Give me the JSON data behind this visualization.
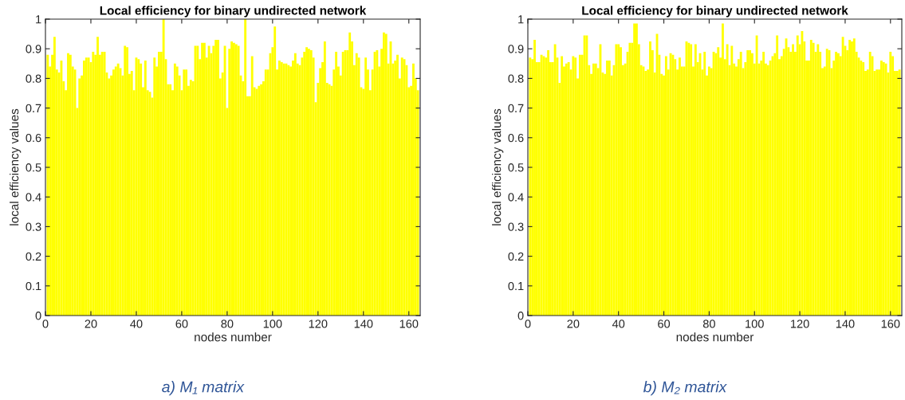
{
  "chart_data": [
    {
      "type": "bar",
      "title": "Local efficiency for binary undirected network",
      "xlabel": "nodes number",
      "ylabel": "local efficiency values",
      "annotations": [
        "a) M₁ matrix"
      ],
      "color": "#ffff00",
      "x": [
        1,
        2,
        3,
        4,
        5,
        6,
        7,
        8,
        9,
        10,
        11,
        12,
        13,
        14,
        15,
        16,
        17,
        18,
        19,
        20,
        21,
        22,
        23,
        24,
        25,
        26,
        27,
        28,
        29,
        30,
        31,
        32,
        33,
        34,
        35,
        36,
        37,
        38,
        39,
        40,
        41,
        42,
        43,
        44,
        45,
        46,
        47,
        48,
        49,
        50,
        51,
        52,
        53,
        54,
        55,
        56,
        57,
        58,
        59,
        60,
        61,
        62,
        63,
        64,
        65,
        66,
        67,
        68,
        69,
        70,
        71,
        72,
        73,
        74,
        75,
        76,
        77,
        78,
        79,
        80,
        81,
        82,
        83,
        84,
        85,
        86,
        87,
        88,
        89,
        90,
        91,
        92,
        93,
        94,
        95,
        96,
        97,
        98,
        99,
        100,
        101,
        102,
        103,
        104,
        105,
        106,
        107,
        108,
        109,
        110,
        111,
        112,
        113,
        114,
        115,
        116,
        117,
        118,
        119,
        120,
        121,
        122,
        123,
        124,
        125,
        126,
        127,
        128,
        129,
        130,
        131,
        132,
        133,
        134,
        135,
        136,
        137,
        138,
        139,
        140,
        141,
        142,
        143,
        144,
        145,
        146,
        147,
        148,
        149,
        150,
        151,
        152,
        153,
        154,
        155,
        156,
        157,
        158,
        159,
        160,
        161,
        162,
        163,
        164
      ],
      "values": [
        0.88,
        0.84,
        0.88,
        0.94,
        0.83,
        0.82,
        0.86,
        0.79,
        0.76,
        0.885,
        0.88,
        0.84,
        0.83,
        0.7,
        0.8,
        0.81,
        0.86,
        0.87,
        0.87,
        0.855,
        0.89,
        0.88,
        0.94,
        0.88,
        0.89,
        0.89,
        0.82,
        0.8,
        0.81,
        0.83,
        0.84,
        0.85,
        0.835,
        0.81,
        0.91,
        0.905,
        0.815,
        0.825,
        0.76,
        0.87,
        0.865,
        0.85,
        0.77,
        0.86,
        0.76,
        0.755,
        0.735,
        0.87,
        0.84,
        0.89,
        0.89,
        1.0,
        0.865,
        0.78,
        0.78,
        0.76,
        0.85,
        0.84,
        0.81,
        0.76,
        0.83,
        0.83,
        0.775,
        0.795,
        0.79,
        0.91,
        0.91,
        0.865,
        0.92,
        0.92,
        0.87,
        0.91,
        0.885,
        0.91,
        0.93,
        0.93,
        0.8,
        0.82,
        0.91,
        0.7,
        0.9,
        0.925,
        0.92,
        0.915,
        0.91,
        0.81,
        0.79,
        1.0,
        0.74,
        0.74,
        0.875,
        0.77,
        0.765,
        0.775,
        0.78,
        0.79,
        0.83,
        0.83,
        0.885,
        0.905,
        0.975,
        0.83,
        0.86,
        0.855,
        0.85,
        0.85,
        0.845,
        0.84,
        0.86,
        0.885,
        0.85,
        0.845,
        0.87,
        0.89,
        0.905,
        0.9,
        0.895,
        0.87,
        0.72,
        0.785,
        0.835,
        0.855,
        0.925,
        0.785,
        0.78,
        0.775,
        0.83,
        0.89,
        0.84,
        0.81,
        0.89,
        0.895,
        0.895,
        0.955,
        0.925,
        0.845,
        0.885,
        0.87,
        0.77,
        0.765,
        0.87,
        0.83,
        0.76,
        0.83,
        0.89,
        0.895,
        0.84,
        0.9,
        0.955,
        0.95,
        0.85,
        0.925,
        0.85,
        0.86,
        0.88,
        0.8,
        0.87,
        0.865,
        0.845,
        0.77,
        0.775,
        0.85,
        0.8,
        0.76
      ],
      "xlim": [
        0,
        165
      ],
      "xticks": [
        0,
        20,
        40,
        60,
        80,
        100,
        120,
        140,
        160
      ],
      "ylim": [
        0,
        1
      ],
      "yticks": [
        0,
        0.1,
        0.2,
        0.3,
        0.4,
        0.5,
        0.6,
        0.7,
        0.8,
        0.9,
        1
      ],
      "grid": false
    },
    {
      "type": "bar",
      "title": "Local efficiency for binary undirected network",
      "xlabel": "nodes number",
      "ylabel": "local efficiency values",
      "annotations": [
        "b) M₂ matrix"
      ],
      "color": "#ffff00",
      "x": [
        1,
        2,
        3,
        4,
        5,
        6,
        7,
        8,
        9,
        10,
        11,
        12,
        13,
        14,
        15,
        16,
        17,
        18,
        19,
        20,
        21,
        22,
        23,
        24,
        25,
        26,
        27,
        28,
        29,
        30,
        31,
        32,
        33,
        34,
        35,
        36,
        37,
        38,
        39,
        40,
        41,
        42,
        43,
        44,
        45,
        46,
        47,
        48,
        49,
        50,
        51,
        52,
        53,
        54,
        55,
        56,
        57,
        58,
        59,
        60,
        61,
        62,
        63,
        64,
        65,
        66,
        67,
        68,
        69,
        70,
        71,
        72,
        73,
        74,
        75,
        76,
        77,
        78,
        79,
        80,
        81,
        82,
        83,
        84,
        85,
        86,
        87,
        88,
        89,
        90,
        91,
        92,
        93,
        94,
        95,
        96,
        97,
        98,
        99,
        100,
        101,
        102,
        103,
        104,
        105,
        106,
        107,
        108,
        109,
        110,
        111,
        112,
        113,
        114,
        115,
        116,
        117,
        118,
        119,
        120,
        121,
        122,
        123,
        124,
        125,
        126,
        127,
        128,
        129,
        130,
        131,
        132,
        133,
        134,
        135,
        136,
        137,
        138,
        139,
        140,
        141,
        142,
        143,
        144,
        145,
        146,
        147,
        148,
        149,
        150,
        151,
        152,
        153,
        154,
        155,
        156,
        157,
        158,
        159,
        160,
        161,
        162,
        163,
        164
      ],
      "values": [
        0.87,
        0.865,
        0.93,
        0.855,
        0.855,
        0.88,
        0.875,
        0.87,
        0.895,
        0.855,
        0.855,
        0.915,
        0.87,
        0.785,
        0.875,
        0.84,
        0.85,
        0.855,
        0.83,
        0.875,
        0.87,
        0.8,
        0.88,
        0.88,
        0.945,
        0.945,
        0.845,
        0.815,
        0.85,
        0.85,
        0.835,
        0.915,
        0.82,
        0.815,
        0.86,
        0.86,
        0.81,
        0.845,
        0.915,
        0.915,
        0.905,
        0.845,
        0.85,
        0.89,
        0.92,
        0.92,
        0.985,
        0.985,
        0.915,
        0.845,
        0.84,
        0.825,
        0.83,
        0.925,
        0.895,
        0.82,
        0.95,
        0.88,
        0.815,
        0.81,
        0.875,
        0.83,
        0.885,
        0.88,
        0.865,
        0.83,
        0.87,
        0.84,
        0.84,
        0.925,
        0.92,
        0.915,
        0.84,
        0.915,
        0.855,
        0.885,
        0.83,
        0.89,
        0.81,
        0.84,
        0.835,
        0.89,
        0.885,
        0.905,
        0.87,
        0.985,
        0.865,
        0.915,
        0.845,
        0.91,
        0.85,
        0.84,
        0.865,
        0.89,
        0.835,
        0.855,
        0.895,
        0.895,
        0.885,
        0.85,
        0.945,
        0.85,
        0.86,
        0.89,
        0.85,
        0.845,
        0.86,
        0.875,
        0.885,
        0.945,
        0.865,
        0.875,
        0.9,
        0.935,
        0.905,
        0.89,
        0.915,
        0.89,
        0.945,
        0.915,
        0.96,
        0.925,
        0.86,
        0.86,
        0.93,
        0.92,
        0.89,
        0.915,
        0.89,
        0.835,
        0.84,
        0.9,
        0.895,
        0.835,
        0.86,
        0.89,
        0.885,
        0.875,
        0.94,
        0.91,
        0.895,
        0.93,
        0.925,
        0.935,
        0.89,
        0.87,
        0.86,
        0.855,
        0.825,
        0.83,
        0.89,
        0.875,
        0.825,
        0.83,
        0.83,
        0.86,
        0.855,
        0.85,
        0.82,
        0.89,
        0.875,
        0.825,
        0.825,
        0.83
      ],
      "xlim": [
        0,
        165
      ],
      "xticks": [
        0,
        20,
        40,
        60,
        80,
        100,
        120,
        140,
        160
      ],
      "ylim": [
        0,
        1
      ],
      "yticks": [
        0,
        0.1,
        0.2,
        0.3,
        0.4,
        0.5,
        0.6,
        0.7,
        0.8,
        0.9,
        1
      ],
      "grid": false
    }
  ]
}
